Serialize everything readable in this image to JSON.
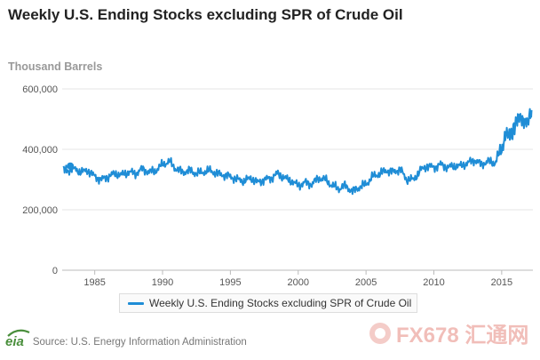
{
  "title": "Weekly U.S. Ending Stocks excluding SPR of Crude Oil",
  "y_unit": "Thousand Barrels",
  "source": "Source: U.S. Energy Information Administration",
  "logo_text": "eia",
  "watermark": "FX678 汇通网",
  "colors": {
    "series": "#1f8dd6",
    "grid": "#e6e6e6",
    "axis": "#555555",
    "logo": "#4a8f3c",
    "watermark": "#f0b8b2"
  },
  "chart_data": {
    "type": "line",
    "title": "Weekly U.S. Ending Stocks excluding SPR of Crude Oil",
    "xlabel": "",
    "ylabel": "Thousand Barrels",
    "xlim": [
      1982.6,
      2017.3
    ],
    "ylim": [
      0,
      600000
    ],
    "yticks": [
      0,
      200000,
      400000,
      600000
    ],
    "ytick_labels": [
      "0",
      "200,000",
      "400,000",
      "600,000"
    ],
    "xticks": [
      1985,
      1990,
      1995,
      2000,
      2005,
      2010,
      2015
    ],
    "xtick_labels": [
      "1985",
      "1990",
      "1995",
      "2000",
      "2005",
      "2010",
      "2015"
    ],
    "grid": true,
    "legend": "bottom-center",
    "highlight_point": {
      "x": 1983.2,
      "y": 345000
    },
    "series": [
      {
        "name": "Weekly U.S. Ending Stocks excluding SPR of Crude Oil",
        "x": [
          1982.7,
          1983.0,
          1983.5,
          1984.0,
          1984.5,
          1985.0,
          1985.5,
          1986.0,
          1986.5,
          1987.0,
          1987.5,
          1988.0,
          1988.5,
          1989.0,
          1989.5,
          1990.0,
          1990.5,
          1991.0,
          1991.5,
          1992.0,
          1992.5,
          1993.0,
          1993.5,
          1994.0,
          1994.5,
          1995.0,
          1995.5,
          1996.0,
          1996.5,
          1997.0,
          1997.5,
          1998.0,
          1998.5,
          1999.0,
          1999.5,
          2000.0,
          2000.5,
          2001.0,
          2001.5,
          2002.0,
          2002.5,
          2003.0,
          2003.5,
          2004.0,
          2004.5,
          2005.0,
          2005.5,
          2006.0,
          2006.5,
          2007.0,
          2007.5,
          2008.0,
          2008.5,
          2009.0,
          2009.5,
          2010.0,
          2010.5,
          2011.0,
          2011.5,
          2012.0,
          2012.5,
          2013.0,
          2013.5,
          2014.0,
          2014.5,
          2015.0,
          2015.3,
          2015.6,
          2016.0,
          2016.3,
          2016.6,
          2016.9,
          2017.1,
          2017.2
        ],
        "values": [
          340000,
          330000,
          335000,
          325000,
          330000,
          310000,
          300000,
          310000,
          320000,
          315000,
          325000,
          320000,
          335000,
          325000,
          330000,
          350000,
          360000,
          335000,
          325000,
          330000,
          320000,
          325000,
          330000,
          320000,
          315000,
          310000,
          300000,
          295000,
          305000,
          290000,
          300000,
          305000,
          320000,
          305000,
          295000,
          280000,
          290000,
          285000,
          305000,
          300000,
          280000,
          270000,
          280000,
          260000,
          275000,
          285000,
          310000,
          320000,
          330000,
          325000,
          335000,
          300000,
          300000,
          330000,
          345000,
          340000,
          350000,
          340000,
          345000,
          345000,
          355000,
          365000,
          350000,
          360000,
          355000,
          400000,
          455000,
          440000,
          480000,
          510000,
          500000,
          490000,
          520000,
          530000
        ]
      }
    ]
  }
}
